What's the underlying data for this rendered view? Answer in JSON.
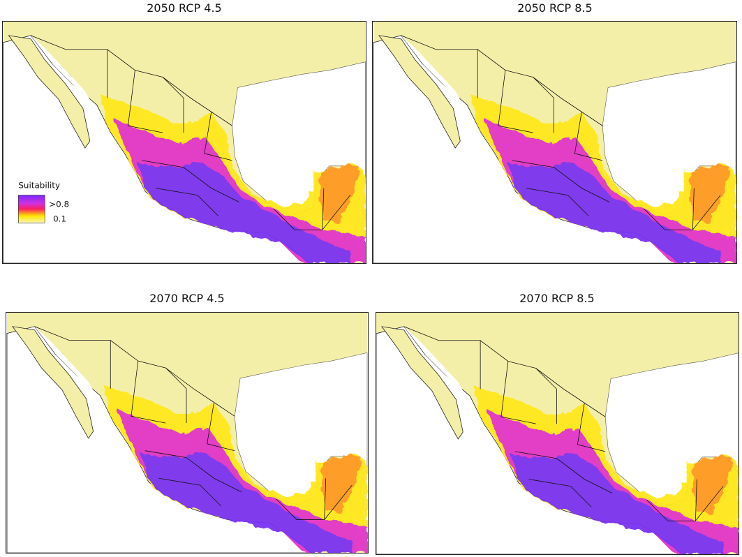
{
  "panels": [
    {
      "title": "2050 RCP 4.5"
    },
    {
      "title": "2050 RCP 8.5"
    },
    {
      "title": "2070 RCP 4.5"
    },
    {
      "title": "2070 RCP 8.5"
    }
  ],
  "legend": {
    "title": "Suitability",
    "high_label": ">0.8",
    "low_label": "0.1"
  }
}
